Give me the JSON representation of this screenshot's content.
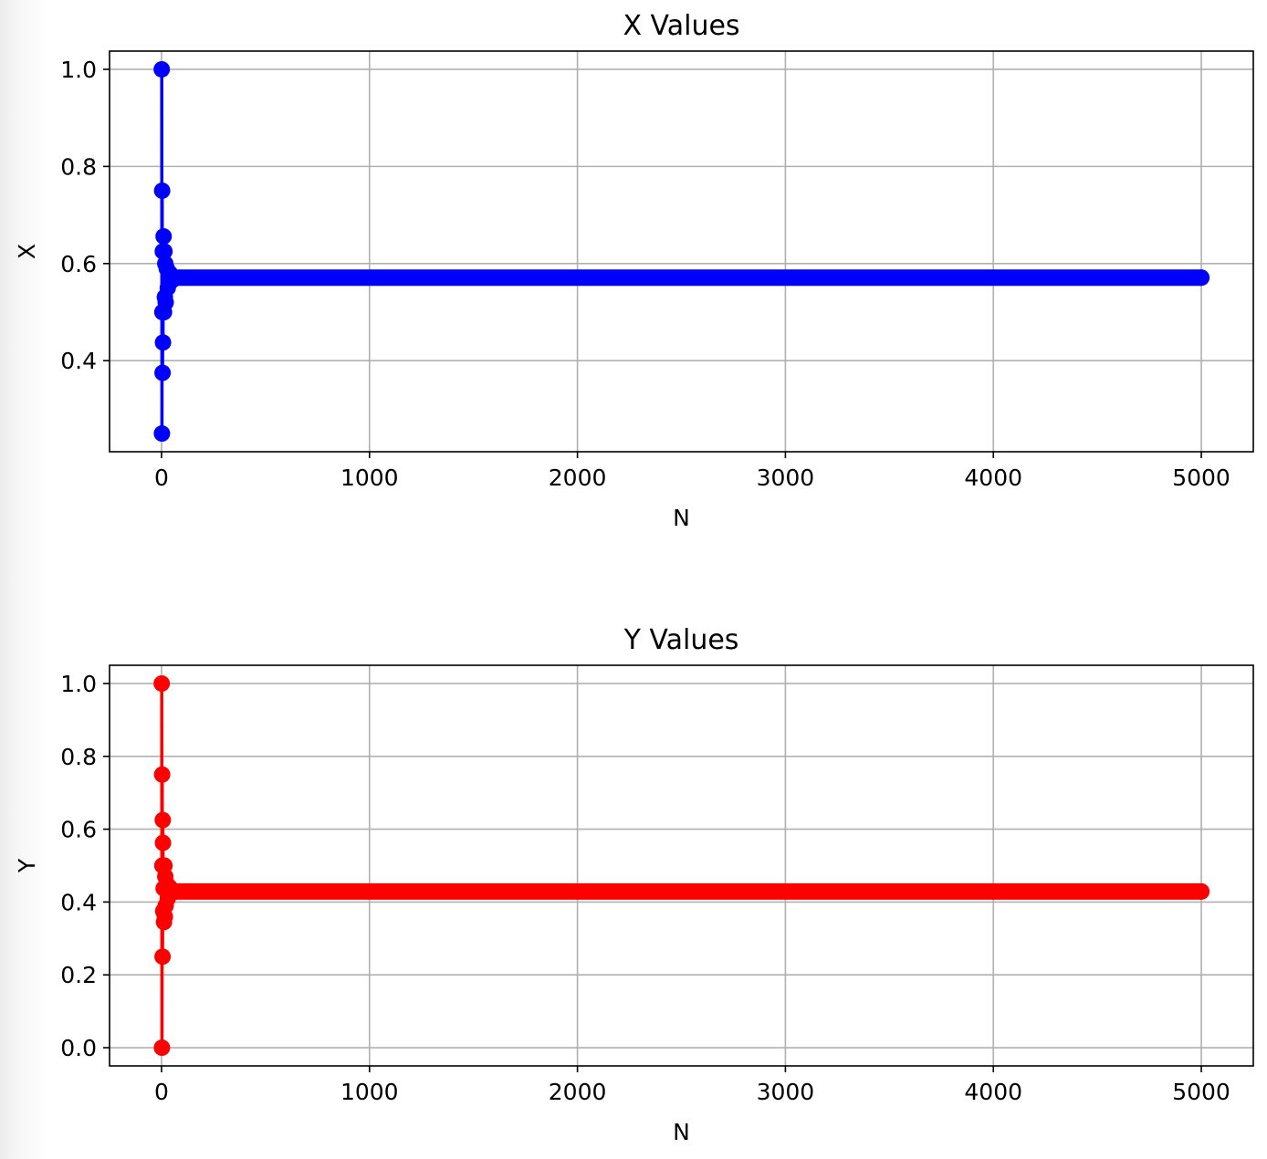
{
  "chart_data": [
    {
      "type": "line",
      "title": "X Values",
      "xlabel": "N",
      "ylabel": "X",
      "color": "#0000ff",
      "xlim": [
        -250,
        5250
      ],
      "ylim": [
        0.2125,
        1.0375
      ],
      "xticks": [
        0,
        1000,
        2000,
        3000,
        4000,
        5000
      ],
      "xtick_labels": [
        "0",
        "1000",
        "2000",
        "3000",
        "4000",
        "5000"
      ],
      "yticks": [
        0.4,
        0.6,
        0.8,
        1.0
      ],
      "ytick_labels": [
        "0.4",
        "0.6",
        "0.8",
        "1.0"
      ],
      "grid": true,
      "series": [
        {
          "n_points": 5000,
          "x": [
            1,
            2,
            3,
            4,
            5,
            6,
            7,
            8,
            9,
            10,
            12,
            14,
            16,
            18,
            20,
            25,
            30,
            40,
            50,
            5000
          ],
          "y": [
            1.0,
            0.25,
            0.75,
            0.5,
            0.375,
            0.625,
            0.4375,
            0.625,
            0.5,
            0.656,
            0.5,
            0.625,
            0.531,
            0.6,
            0.52,
            0.59,
            0.55,
            0.58,
            0.565,
            0.571
          ]
        }
      ]
    },
    {
      "type": "line",
      "title": "Y Values",
      "xlabel": "N",
      "ylabel": "Y",
      "color": "#ff0000",
      "xlim": [
        -250,
        5250
      ],
      "ylim": [
        -0.05,
        1.05
      ],
      "xticks": [
        0,
        1000,
        2000,
        3000,
        4000,
        5000
      ],
      "xtick_labels": [
        "0",
        "1000",
        "2000",
        "3000",
        "4000",
        "5000"
      ],
      "yticks": [
        0.0,
        0.2,
        0.4,
        0.6,
        0.8,
        1.0
      ],
      "ytick_labels": [
        "0.0",
        "0.2",
        "0.4",
        "0.6",
        "0.8",
        "1.0"
      ],
      "grid": true,
      "series": [
        {
          "n_points": 5000,
          "x": [
            1,
            2,
            3,
            4,
            5,
            6,
            7,
            8,
            9,
            10,
            12,
            14,
            16,
            18,
            20,
            25,
            30,
            40,
            50,
            5000
          ],
          "y": [
            1.0,
            0.0,
            0.75,
            0.5,
            0.25,
            0.625,
            0.5625,
            0.375,
            0.5,
            0.4375,
            0.345,
            0.5,
            0.36,
            0.47,
            0.39,
            0.45,
            0.41,
            0.44,
            0.425,
            0.429
          ]
        }
      ]
    }
  ]
}
